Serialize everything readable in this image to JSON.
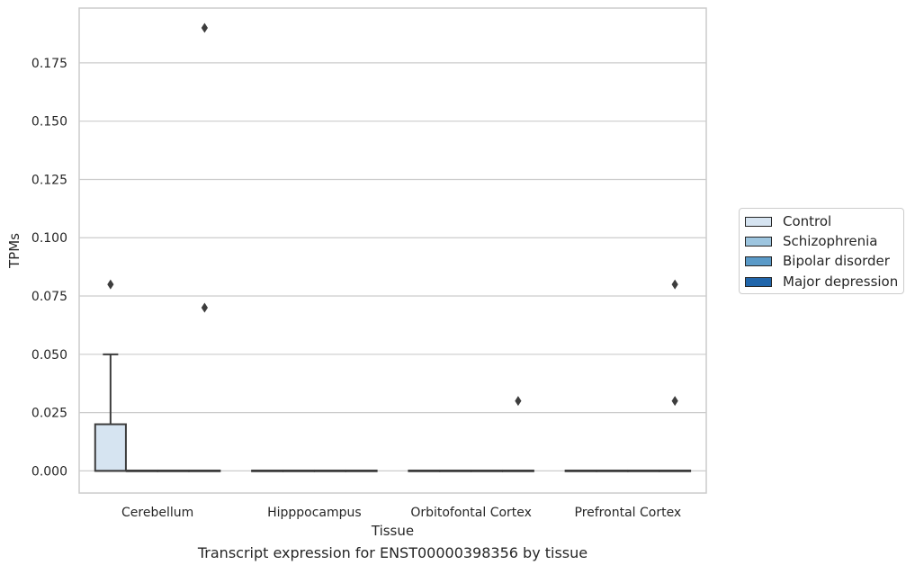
{
  "chart_data": {
    "type": "box",
    "xlabel": "Tissue",
    "ylabel": "TPMs",
    "caption": "Transcript expression for ENST00000398356 by tissue",
    "categories": [
      "Cerebellum",
      "Hipppocampus",
      "Orbitofontal Cortex",
      "Prefrontal Cortex"
    ],
    "ylim": [
      -0.0095,
      0.1985
    ],
    "yticks": [
      0.0,
      0.025,
      0.05,
      0.075,
      0.1,
      0.125,
      0.15,
      0.175
    ],
    "ytick_labels": [
      "0.000",
      "0.025",
      "0.050",
      "0.075",
      "0.100",
      "0.125",
      "0.150",
      "0.175"
    ],
    "grid": true,
    "legend_position": "right",
    "series": [
      {
        "name": "Control",
        "color": "#d6e4f1",
        "boxes": [
          {
            "category": "Cerebellum",
            "q1": 0.0,
            "median": 0.0,
            "q3": 0.02,
            "whisker_low": 0.0,
            "whisker_high": 0.05,
            "outliers": [
              0.08
            ]
          },
          {
            "category": "Hipppocampus",
            "q1": 0.0,
            "median": 0.0,
            "q3": 0.0,
            "whisker_low": 0.0,
            "whisker_high": 0.0,
            "outliers": []
          },
          {
            "category": "Orbitofontal Cortex",
            "q1": 0.0,
            "median": 0.0,
            "q3": 0.0,
            "whisker_low": 0.0,
            "whisker_high": 0.0,
            "outliers": []
          },
          {
            "category": "Prefrontal Cortex",
            "q1": 0.0,
            "median": 0.0,
            "q3": 0.0,
            "whisker_low": 0.0,
            "whisker_high": 0.0,
            "outliers": []
          }
        ]
      },
      {
        "name": "Schizophrenia",
        "color": "#9dc5df",
        "boxes": [
          {
            "category": "Cerebellum",
            "q1": 0.0,
            "median": 0.0,
            "q3": 0.0,
            "whisker_low": 0.0,
            "whisker_high": 0.0,
            "outliers": []
          },
          {
            "category": "Hipppocampus",
            "q1": 0.0,
            "median": 0.0,
            "q3": 0.0,
            "whisker_low": 0.0,
            "whisker_high": 0.0,
            "outliers": []
          },
          {
            "category": "Orbitofontal Cortex",
            "q1": 0.0,
            "median": 0.0,
            "q3": 0.0,
            "whisker_low": 0.0,
            "whisker_high": 0.0,
            "outliers": []
          },
          {
            "category": "Prefrontal Cortex",
            "q1": 0.0,
            "median": 0.0,
            "q3": 0.0,
            "whisker_low": 0.0,
            "whisker_high": 0.0,
            "outliers": []
          }
        ]
      },
      {
        "name": "Bipolar disorder",
        "color": "#5a9ac8",
        "boxes": [
          {
            "category": "Cerebellum",
            "q1": 0.0,
            "median": 0.0,
            "q3": 0.0,
            "whisker_low": 0.0,
            "whisker_high": 0.0,
            "outliers": []
          },
          {
            "category": "Hipppocampus",
            "q1": 0.0,
            "median": 0.0,
            "q3": 0.0,
            "whisker_low": 0.0,
            "whisker_high": 0.0,
            "outliers": []
          },
          {
            "category": "Orbitofontal Cortex",
            "q1": 0.0,
            "median": 0.0,
            "q3": 0.0,
            "whisker_low": 0.0,
            "whisker_high": 0.0,
            "outliers": []
          },
          {
            "category": "Prefrontal Cortex",
            "q1": 0.0,
            "median": 0.0,
            "q3": 0.0,
            "whisker_low": 0.0,
            "whisker_high": 0.0,
            "outliers": []
          }
        ]
      },
      {
        "name": "Major depression",
        "color": "#2166ab",
        "boxes": [
          {
            "category": "Cerebellum",
            "q1": 0.0,
            "median": 0.0,
            "q3": 0.0,
            "whisker_low": 0.0,
            "whisker_high": 0.0,
            "outliers": [
              0.19,
              0.07
            ]
          },
          {
            "category": "Hipppocampus",
            "q1": 0.0,
            "median": 0.0,
            "q3": 0.0,
            "whisker_low": 0.0,
            "whisker_high": 0.0,
            "outliers": []
          },
          {
            "category": "Orbitofontal Cortex",
            "q1": 0.0,
            "median": 0.0,
            "q3": 0.0,
            "whisker_low": 0.0,
            "whisker_high": 0.0,
            "outliers": [
              0.03
            ]
          },
          {
            "category": "Prefrontal Cortex",
            "q1": 0.0,
            "median": 0.0,
            "q3": 0.0,
            "whisker_low": 0.0,
            "whisker_high": 0.0,
            "outliers": [
              0.08,
              0.03
            ]
          }
        ]
      }
    ]
  }
}
